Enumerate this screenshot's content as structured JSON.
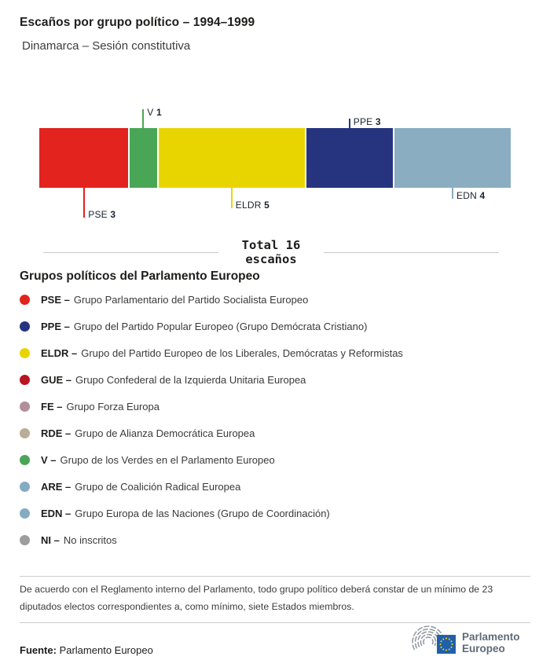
{
  "header": {
    "title": "Escaños por grupo político – 1994–1999",
    "subtitle": "Dinamarca – Sesión constitutiva"
  },
  "chart_data": {
    "type": "bar",
    "variant": "horizontal-stacked-seats",
    "title": "Escaños por grupo político – 1994–1999",
    "subtitle": "Dinamarca – Sesión constitutiva",
    "total_seats": 16,
    "total_label_line1": "Total 16",
    "total_label_line2": "escaños",
    "series": [
      {
        "name": "PSE",
        "seats": 3,
        "color": "#e2231e",
        "label_side": "below"
      },
      {
        "name": "V",
        "seats": 1,
        "color": "#4aa657",
        "label_side": "above"
      },
      {
        "name": "ELDR",
        "seats": 5,
        "color": "#e8d500",
        "label_side": "below"
      },
      {
        "name": "PPE",
        "seats": 3,
        "color": "#263480",
        "label_side": "above"
      },
      {
        "name": "EDN",
        "seats": 4,
        "color": "#8aadc2",
        "label_side": "below"
      }
    ]
  },
  "legend": {
    "heading": "Grupos políticos del Parlamento Europeo",
    "items": [
      {
        "abbr": "PSE –",
        "desc": "Grupo Parlamentario del Partido Socialista Europeo",
        "color": "#e2231e"
      },
      {
        "abbr": "PPE –",
        "desc": "Grupo del Partido Popular Europeo (Grupo Demócrata Cristiano)",
        "color": "#263480"
      },
      {
        "abbr": "ELDR –",
        "desc": "Grupo del Partido Europeo de los Liberales, Demócratas y Reformistas",
        "color": "#e8d500"
      },
      {
        "abbr": "GUE –",
        "desc": "Grupo Confederal de la Izquierda Unitaria Europea",
        "color": "#b81421"
      },
      {
        "abbr": "FE –",
        "desc": "Grupo Forza Europa",
        "color": "#b18e99"
      },
      {
        "abbr": "RDE –",
        "desc": "Grupo de Alianza Democrática Europea",
        "color": "#b8ad96"
      },
      {
        "abbr": "V –",
        "desc": "Grupo de los Verdes en el Parlamento Europeo",
        "color": "#4aa657"
      },
      {
        "abbr": "ARE –",
        "desc": "Grupo de Coalición Radical Europea",
        "color": "#85abc3"
      },
      {
        "abbr": "EDN –",
        "desc": "Grupo Europa de las Naciones (Grupo de Coordinación)",
        "color": "#85abc3"
      },
      {
        "abbr": "NI –",
        "desc": "No inscritos",
        "color": "#9d9d9d"
      }
    ]
  },
  "footnote": "De acuerdo con el Reglamento interno del Parlamento, todo grupo político deberá constar de un mínimo de 23 diputados electos correspondientes a, como mínimo, siete Estados miembros.",
  "footer": {
    "source_label": "Fuente:",
    "source_value": " Parlamento Europeo",
    "logo_line1": "Parlamento",
    "logo_line2": "Europeo",
    "logo_colors": {
      "arcs": "#8e979e",
      "flag": "#2160a8",
      "stars": "#ffd617",
      "text": "#5f6b77"
    }
  }
}
